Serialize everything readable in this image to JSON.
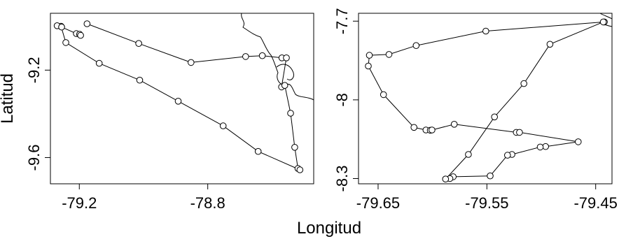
{
  "chart_data": {
    "xlabel": "Longitud",
    "ylabel": "Latitud",
    "panels": [
      {
        "type": "line",
        "markers": "open-circle",
        "xlim": [
          -79.29,
          -78.47
        ],
        "ylim": [
          -9.72,
          -8.94
        ],
        "xticks": [
          -79.2,
          -78.8
        ],
        "yticks": [
          -9.2,
          -9.6
        ],
        "x": [
          -79.176,
          -79.015,
          -78.852,
          -78.682,
          -78.63,
          -78.569,
          -78.555,
          -78.57,
          -78.56,
          -78.542,
          -78.529,
          -78.519,
          -78.513,
          -78.643,
          -78.752,
          -78.892,
          -79.012,
          -79.138,
          -79.242,
          -79.257,
          -79.269,
          -79.255,
          -79.209,
          -79.199,
          -79.196
        ],
        "y": [
          -8.988,
          -9.078,
          -9.165,
          -9.138,
          -9.134,
          -9.144,
          -9.144,
          -9.277,
          -9.27,
          -9.397,
          -9.553,
          -9.65,
          -9.656,
          -9.572,
          -9.455,
          -9.342,
          -9.246,
          -9.169,
          -9.074,
          -8.999,
          -8.997,
          -9.003,
          -9.033,
          -9.036,
          -9.041
        ]
      },
      {
        "type": "line",
        "markers": "open-circle",
        "xlim": [
          -79.668,
          -79.435
        ],
        "ylim": [
          -8.32,
          -7.67
        ],
        "xticks": [
          -79.65,
          -79.55,
          -79.45
        ],
        "yticks": [
          -7.7,
          -8.0,
          -8.3
        ],
        "x": [
          -79.442,
          -79.551,
          -79.615,
          -79.64,
          -79.658,
          -79.659,
          -79.645,
          -79.617,
          -79.606,
          -79.602,
          -79.6005,
          -79.58,
          -79.523,
          -79.52,
          -79.466,
          -79.496,
          -79.501,
          -79.527,
          -79.531,
          -79.547,
          -79.581,
          -79.584,
          -79.588,
          -79.567,
          -79.543,
          -79.516,
          -79.492,
          -79.443
        ],
        "y": [
          -7.703,
          -7.738,
          -7.793,
          -7.827,
          -7.83,
          -7.871,
          -7.98,
          -8.105,
          -8.115,
          -8.116,
          -8.115,
          -8.093,
          -8.124,
          -8.124,
          -8.16,
          -8.178,
          -8.18,
          -8.208,
          -8.211,
          -8.29,
          -8.293,
          -8.3,
          -8.302,
          -8.208,
          -8.065,
          -7.938,
          -7.788,
          -7.703
        ]
      }
    ]
  }
}
